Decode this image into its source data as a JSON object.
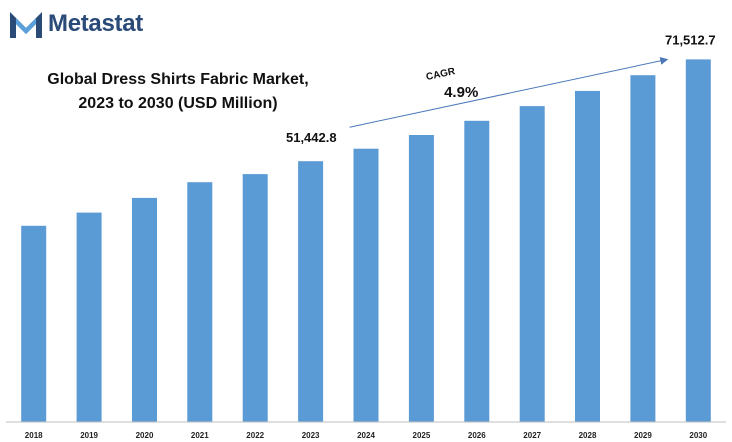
{
  "brand": {
    "name": "Metastat",
    "logo_icon": "metastat-m-logo-icon",
    "colors": {
      "logo_dark": "#2a4a78",
      "logo_light": "#5aa0dc"
    }
  },
  "chart_data": {
    "type": "bar",
    "title": "Global Dress Shirts Fabric Market, 2023 to 2030 (USD Million)",
    "title_lines": [
      "Global Dress Shirts Fabric Market,",
      "2023 to 2030 (USD Million)"
    ],
    "xlabel": "",
    "ylabel": "",
    "categories": [
      "2018",
      "2019",
      "2020",
      "2021",
      "2022",
      "2023",
      "2024",
      "2025",
      "2026",
      "2027",
      "2028",
      "2029",
      "2030"
    ],
    "values": [
      38700,
      41300,
      44200,
      47300,
      48900,
      51442.8,
      53900,
      56600,
      59400,
      62300,
      65300,
      68400,
      71512.7
    ],
    "ylim": [
      0,
      78500
    ],
    "grid": false,
    "legend": "none",
    "bar_color": "#5b9bd5",
    "annotations": {
      "start_label": "51,442.8",
      "end_label": "71,512.7",
      "cagr_label": "CAGR",
      "cagr_value": "4.9%",
      "arrow_color": "#4a78b8"
    }
  }
}
